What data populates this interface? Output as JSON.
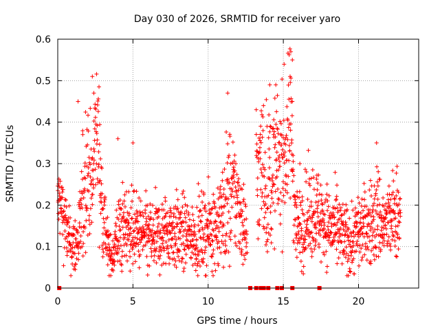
{
  "chart_data": {
    "type": "scatter",
    "title": "Day 030 of 2026, SRMTID for receiver yaro",
    "xlabel": "GPS time / hours",
    "ylabel": "SRMTID / TECUs",
    "xlim": [
      0,
      24
    ],
    "ylim": [
      0,
      0.6
    ],
    "x_ticks": [
      "0",
      "5",
      "10",
      "15",
      "20"
    ],
    "x_tick_values": [
      0,
      5,
      10,
      15,
      20
    ],
    "y_ticks": [
      "0",
      "0.1",
      "0.2",
      "0.3",
      "0.4",
      "0.5",
      "0.6"
    ],
    "y_tick_values": [
      0,
      0.1,
      0.2,
      0.3,
      0.4,
      0.5,
      0.6
    ],
    "grid": true,
    "marker": "+",
    "series": [
      {
        "name": "SRMTID",
        "color": "#ff0000",
        "profile_hours": [
          0.0,
          0.1,
          0.3,
          0.5,
          0.7,
          1.0,
          1.3,
          1.5,
          1.7,
          1.9,
          2.1,
          2.3,
          2.5,
          2.7,
          2.9,
          3.1,
          3.3,
          3.5,
          3.7,
          4.0,
          4.3,
          4.6,
          5.0,
          5.5,
          6.0,
          6.5,
          7.0,
          7.5,
          8.0,
          8.5,
          9.0,
          9.5,
          10.0,
          10.5,
          11.0,
          11.3,
          11.6,
          12.0,
          12.3,
          12.6,
          12.9,
          13.2,
          13.6,
          14.0,
          14.4,
          14.8,
          15.2,
          15.5,
          15.8,
          16.0,
          16.3,
          16.6,
          17.0,
          17.5,
          18.0,
          18.5,
          19.0,
          19.5,
          20.0,
          20.5,
          21.0,
          21.3,
          21.6,
          22.0,
          22.3,
          22.6,
          22.8
        ],
        "profile_center": [
          0.2,
          0.21,
          0.19,
          0.15,
          0.12,
          0.1,
          0.11,
          0.14,
          0.22,
          0.3,
          0.27,
          0.22,
          0.38,
          0.36,
          0.22,
          0.17,
          0.1,
          0.07,
          0.09,
          0.13,
          0.14,
          0.15,
          0.14,
          0.13,
          0.12,
          0.12,
          0.13,
          0.14,
          0.13,
          0.13,
          0.12,
          0.13,
          0.14,
          0.15,
          0.17,
          0.21,
          0.23,
          0.21,
          0.16,
          0.12,
          null,
          0.26,
          0.3,
          0.24,
          0.29,
          0.31,
          0.34,
          0.4,
          0.17,
          0.14,
          0.16,
          0.17,
          0.19,
          0.17,
          0.15,
          0.14,
          0.12,
          0.11,
          0.14,
          0.15,
          0.16,
          0.18,
          0.15,
          0.16,
          0.17,
          0.19,
          0.17
        ],
        "profile_spread": [
          0.05,
          0.05,
          0.05,
          0.05,
          0.04,
          0.04,
          0.05,
          0.06,
          0.09,
          0.1,
          0.08,
          0.08,
          0.08,
          0.09,
          0.07,
          0.06,
          0.04,
          0.03,
          0.04,
          0.05,
          0.06,
          0.05,
          0.05,
          0.05,
          0.05,
          0.05,
          0.05,
          0.05,
          0.05,
          0.05,
          0.04,
          0.05,
          0.05,
          0.06,
          0.07,
          0.1,
          0.08,
          0.07,
          0.06,
          0.05,
          null,
          0.09,
          0.1,
          0.1,
          0.09,
          0.09,
          0.1,
          0.1,
          0.06,
          0.05,
          0.06,
          0.06,
          0.06,
          0.06,
          0.05,
          0.05,
          0.05,
          0.05,
          0.05,
          0.05,
          0.06,
          0.07,
          0.05,
          0.05,
          0.06,
          0.06,
          0.05
        ],
        "zero_points_hours": [
          0.1,
          12.8,
          13.2,
          13.5,
          13.7,
          14.0,
          14.6,
          14.9,
          15.6,
          17.4
        ],
        "peak_points": [
          {
            "x": 2.3,
            "y": 0.51
          },
          {
            "x": 2.4,
            "y": 0.47
          },
          {
            "x": 1.35,
            "y": 0.45
          },
          {
            "x": 11.3,
            "y": 0.47
          },
          {
            "x": 14.1,
            "y": 0.49
          },
          {
            "x": 14.5,
            "y": 0.49
          },
          {
            "x": 15.5,
            "y": 0.57
          },
          {
            "x": 15.6,
            "y": 0.55
          },
          {
            "x": 15.45,
            "y": 0.51
          },
          {
            "x": 15.6,
            "y": 0.45
          },
          {
            "x": 13.2,
            "y": 0.43
          },
          {
            "x": 21.2,
            "y": 0.35
          },
          {
            "x": 4.0,
            "y": 0.36
          },
          {
            "x": 5.0,
            "y": 0.35
          },
          {
            "x": 16.1,
            "y": 0.3
          }
        ]
      }
    ]
  }
}
